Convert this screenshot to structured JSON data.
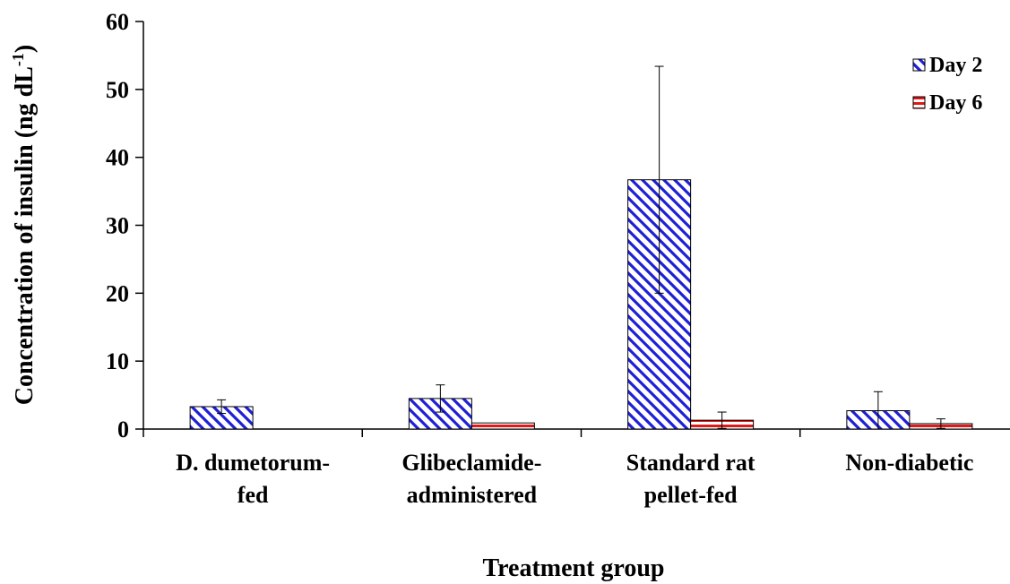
{
  "chart_data": {
    "type": "bar",
    "title": "",
    "xlabel": "Treatment group",
    "ylabel": "Concentration of insulin (ng dL",
    "ylabel_superscript": "-1",
    "ylabel_close": ")",
    "ylim": [
      0,
      60
    ],
    "yticks": [
      "0",
      "10",
      "20",
      "30",
      "40",
      "50",
      "60"
    ],
    "categories": [
      [
        "D. dumetorum-",
        "fed"
      ],
      [
        "Glibeclamide-",
        "administered"
      ],
      [
        "Standard rat",
        "pellet-fed"
      ],
      [
        "Non-diabetic"
      ]
    ],
    "series": [
      {
        "name": "Day 2",
        "values": [
          3.3,
          4.5,
          36.7,
          2.7
        ],
        "errors": [
          1.0,
          2.0,
          16.7,
          2.8
        ],
        "color": "#2222cc",
        "pattern": "diagonal-stripes"
      },
      {
        "name": "Day 6",
        "values": [
          0,
          0.9,
          1.3,
          0.8
        ],
        "errors": [
          0,
          0,
          1.2,
          0.7
        ],
        "color": "#cc2222",
        "pattern": "horizontal-stripes"
      }
    ],
    "legend_position": "top-right",
    "grid": false
  }
}
